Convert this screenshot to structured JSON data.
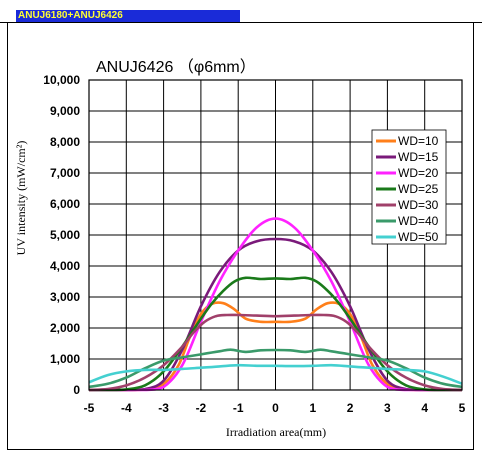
{
  "header": {
    "label": "ANUJ6180+ANUJ6426"
  },
  "chart_data": {
    "type": "line",
    "title": "ANUJ6426 （φ6mm）",
    "xlabel": "Irradiation area(mm)",
    "ylabel": "UV intensity (mW/cm²)",
    "xlim": [
      -5,
      5
    ],
    "ylim": [
      0,
      10000
    ],
    "xticks": [
      "-5",
      "-4",
      "-3",
      "-2",
      "-1",
      "0",
      "1",
      "2",
      "3",
      "4",
      "5"
    ],
    "yticks": [
      "0",
      "1,000",
      "2,000",
      "3,000",
      "4,000",
      "5,000",
      "6,000",
      "7,000",
      "8,000",
      "9,000",
      "10,000"
    ],
    "grid": true,
    "legend_position": "right",
    "series": [
      {
        "name": "WD=10",
        "color": "#ff7f1a",
        "x": [
          -5,
          -4.5,
          -4,
          -3.5,
          -3,
          -2.6,
          -2.3,
          -2,
          -1.7,
          -1.4,
          -1.1,
          -0.8,
          -0.4,
          0,
          0.4,
          0.8,
          1.1,
          1.4,
          1.7,
          2,
          2.3,
          2.6,
          3,
          3.5,
          4,
          4.5,
          5
        ],
        "y": [
          0,
          0,
          0,
          20,
          200,
          800,
          1700,
          2450,
          2780,
          2800,
          2600,
          2300,
          2200,
          2200,
          2200,
          2300,
          2600,
          2800,
          2780,
          2450,
          1700,
          800,
          200,
          20,
          0,
          0,
          0
        ]
      },
      {
        "name": "WD=15",
        "color": "#7a1a7a",
        "x": [
          -5,
          -4.5,
          -4,
          -3.5,
          -3,
          -2.5,
          -2,
          -1.5,
          -1,
          -0.5,
          0,
          0.5,
          1,
          1.5,
          2,
          2.5,
          3,
          3.5,
          4,
          4.5,
          5
        ],
        "y": [
          0,
          0,
          0,
          30,
          300,
          1300,
          2700,
          3800,
          4500,
          4800,
          4870,
          4800,
          4500,
          3800,
          2700,
          1300,
          300,
          30,
          0,
          0,
          0
        ]
      },
      {
        "name": "WD=20",
        "color": "#ff22ff",
        "x": [
          -5,
          -4.5,
          -4,
          -3.5,
          -3,
          -2.5,
          -2,
          -1.5,
          -1,
          -0.5,
          0,
          0.5,
          1,
          1.5,
          2,
          2.5,
          3,
          3.5,
          4,
          4.5,
          5
        ],
        "y": [
          0,
          0,
          0,
          0,
          100,
          800,
          2200,
          3500,
          4500,
          5250,
          5530,
          5250,
          4500,
          3500,
          2200,
          800,
          100,
          0,
          0,
          0,
          0
        ]
      },
      {
        "name": "WD=25",
        "color": "#1a7a1a",
        "x": [
          -5,
          -4.5,
          -4,
          -3.5,
          -3,
          -2.5,
          -2,
          -1.7,
          -1.4,
          -1.1,
          -0.8,
          -0.4,
          0,
          0.4,
          0.8,
          1.1,
          1.4,
          1.7,
          2,
          2.5,
          3,
          3.5,
          4,
          4.5,
          5
        ],
        "y": [
          0,
          0,
          20,
          150,
          600,
          1400,
          2300,
          2800,
          3200,
          3500,
          3620,
          3580,
          3600,
          3580,
          3620,
          3500,
          3200,
          2800,
          2300,
          1400,
          600,
          150,
          20,
          0,
          0
        ]
      },
      {
        "name": "WD=30",
        "color": "#a0406a",
        "x": [
          -5,
          -4.5,
          -4,
          -3.5,
          -3,
          -2.5,
          -2.2,
          -1.9,
          -1.6,
          -1.3,
          -1,
          -0.5,
          0,
          0.5,
          1,
          1.3,
          1.6,
          1.9,
          2.2,
          2.5,
          3,
          3.5,
          4,
          4.5,
          5
        ],
        "y": [
          0,
          30,
          150,
          400,
          800,
          1400,
          1850,
          2200,
          2380,
          2420,
          2420,
          2400,
          2380,
          2400,
          2420,
          2420,
          2380,
          2200,
          1850,
          1400,
          800,
          400,
          150,
          30,
          0
        ]
      },
      {
        "name": "WD=40",
        "color": "#3a9a6a",
        "x": [
          -5,
          -4.5,
          -4,
          -3.5,
          -3,
          -2.5,
          -2,
          -1.5,
          -1.2,
          -0.8,
          -0.4,
          0,
          0.4,
          0.8,
          1.2,
          1.5,
          2,
          2.5,
          3,
          3.5,
          4,
          4.5,
          5
        ],
        "y": [
          100,
          200,
          400,
          700,
          950,
          1050,
          1150,
          1250,
          1300,
          1230,
          1280,
          1290,
          1280,
          1230,
          1300,
          1250,
          1150,
          1050,
          950,
          700,
          400,
          200,
          100
        ]
      },
      {
        "name": "WD=50",
        "color": "#44d0d0",
        "x": [
          -5,
          -4.5,
          -4,
          -3.5,
          -3,
          -2.5,
          -2,
          -1.5,
          -1,
          -0.5,
          0,
          0.5,
          1,
          1.5,
          2,
          2.5,
          3,
          3.5,
          4,
          4.5,
          5
        ],
        "y": [
          250,
          480,
          600,
          650,
          650,
          680,
          720,
          760,
          800,
          780,
          780,
          770,
          780,
          800,
          760,
          720,
          680,
          650,
          600,
          430,
          200
        ]
      }
    ]
  }
}
